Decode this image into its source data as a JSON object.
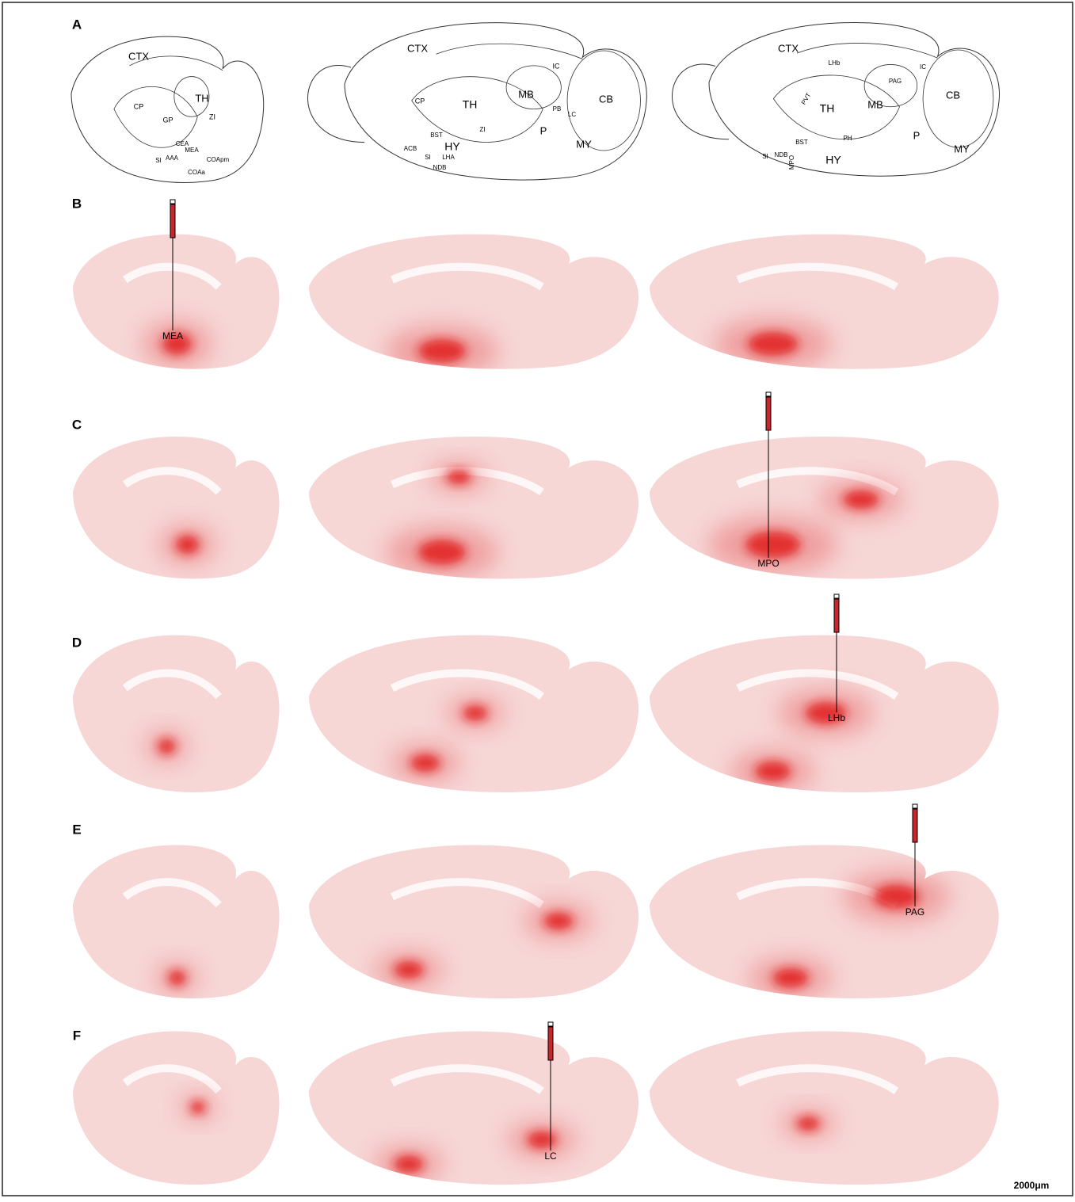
{
  "panel_labels": [
    "A",
    "B",
    "C",
    "D",
    "E",
    "F"
  ],
  "atlas": [
    {
      "labels": [
        "CTX",
        "CP",
        "TH",
        "GP",
        "ZI",
        "CEA",
        "MEA",
        "AAA",
        "SI",
        "COApm",
        "COAa"
      ]
    },
    {
      "labels": [
        "CTX",
        "IC",
        "CP",
        "TH",
        "MB",
        "CB",
        "PB",
        "LC",
        "BST",
        "ACB",
        "HY",
        "ZI",
        "P",
        "MY",
        "SI",
        "LHA",
        "NDB"
      ]
    },
    {
      "labels": [
        "CTX",
        "LHb",
        "PAG",
        "IC",
        "CB",
        "PVT",
        "TH",
        "MB",
        "BST",
        "PH",
        "P",
        "MY",
        "SI",
        "NDB",
        "MPO",
        "HY"
      ]
    }
  ],
  "injection_labels": [
    "MEA",
    "MPO",
    "LHb",
    "PAG",
    "LC"
  ],
  "scale_bar": "2000μm"
}
